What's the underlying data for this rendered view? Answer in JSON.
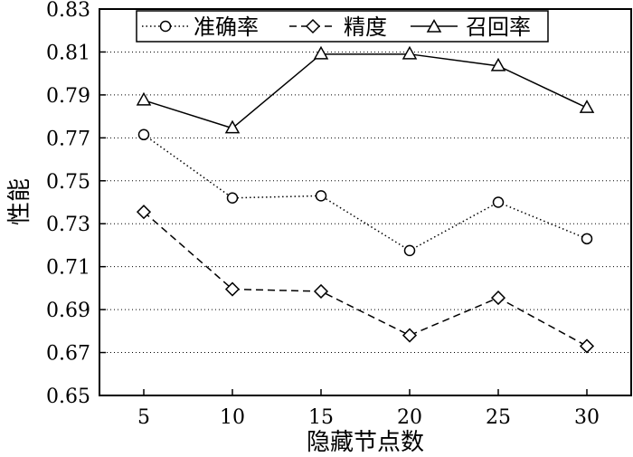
{
  "chart_data": {
    "type": "line",
    "title": "",
    "xlabel": "隐藏节点数",
    "ylabel": "性能",
    "x": [
      5,
      10,
      15,
      20,
      25,
      30
    ],
    "xlim": [
      2.5,
      32.5
    ],
    "ylim": [
      0.65,
      0.83
    ],
    "yticks": [
      "0.65",
      "0.67",
      "0.69",
      "0.71",
      "0.73",
      "0.75",
      "0.77",
      "0.79",
      "0.81",
      "0.83"
    ],
    "xticks": [
      "5",
      "10",
      "15",
      "20",
      "25",
      "30"
    ],
    "grid": "horizontal-dotted",
    "legend_position": "top",
    "series": [
      {
        "name": "准确率",
        "marker": "circle",
        "line": "dotted",
        "values": [
          0.7715,
          0.742,
          0.743,
          0.7175,
          0.74,
          0.723
        ]
      },
      {
        "name": "精度",
        "marker": "diamond",
        "line": "dashed",
        "values": [
          0.7355,
          0.6995,
          0.6985,
          0.678,
          0.6955,
          0.673
        ]
      },
      {
        "name": "召回率",
        "marker": "triangle",
        "line": "solid",
        "values": [
          0.7875,
          0.7745,
          0.809,
          0.809,
          0.8035,
          0.784
        ]
      }
    ]
  }
}
